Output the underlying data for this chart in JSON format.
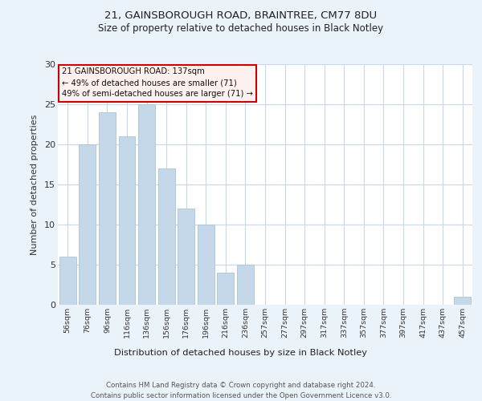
{
  "title1": "21, GAINSBOROUGH ROAD, BRAINTREE, CM77 8DU",
  "title2": "Size of property relative to detached houses in Black Notley",
  "xlabel": "Distribution of detached houses by size in Black Notley",
  "ylabel": "Number of detached properties",
  "categories": [
    "56sqm",
    "76sqm",
    "96sqm",
    "116sqm",
    "136sqm",
    "156sqm",
    "176sqm",
    "196sqm",
    "216sqm",
    "236sqm",
    "257sqm",
    "277sqm",
    "297sqm",
    "317sqm",
    "337sqm",
    "357sqm",
    "377sqm",
    "397sqm",
    "417sqm",
    "437sqm",
    "457sqm"
  ],
  "values": [
    6,
    20,
    24,
    21,
    25,
    17,
    12,
    10,
    4,
    5,
    0,
    0,
    0,
    0,
    0,
    0,
    0,
    0,
    0,
    0,
    1
  ],
  "bar_color": "#c5d8ea",
  "bar_edge_color": "#a8c4d8",
  "highlight_index": 4,
  "annotation_line1": "21 GAINSBOROUGH ROAD: 137sqm",
  "annotation_line2": "← 49% of detached houses are smaller (71)",
  "annotation_line3": "49% of semi-detached houses are larger (71) →",
  "annotation_box_facecolor": "#fff0f0",
  "annotation_box_edgecolor": "#cc0000",
  "ylim": [
    0,
    30
  ],
  "yticks": [
    0,
    5,
    10,
    15,
    20,
    25,
    30
  ],
  "grid_color": "#c8d8e8",
  "background_color": "#eaf2fa",
  "plot_bg_color": "#ffffff",
  "footer1": "Contains HM Land Registry data © Crown copyright and database right 2024.",
  "footer2": "Contains public sector information licensed under the Open Government Licence v3.0."
}
